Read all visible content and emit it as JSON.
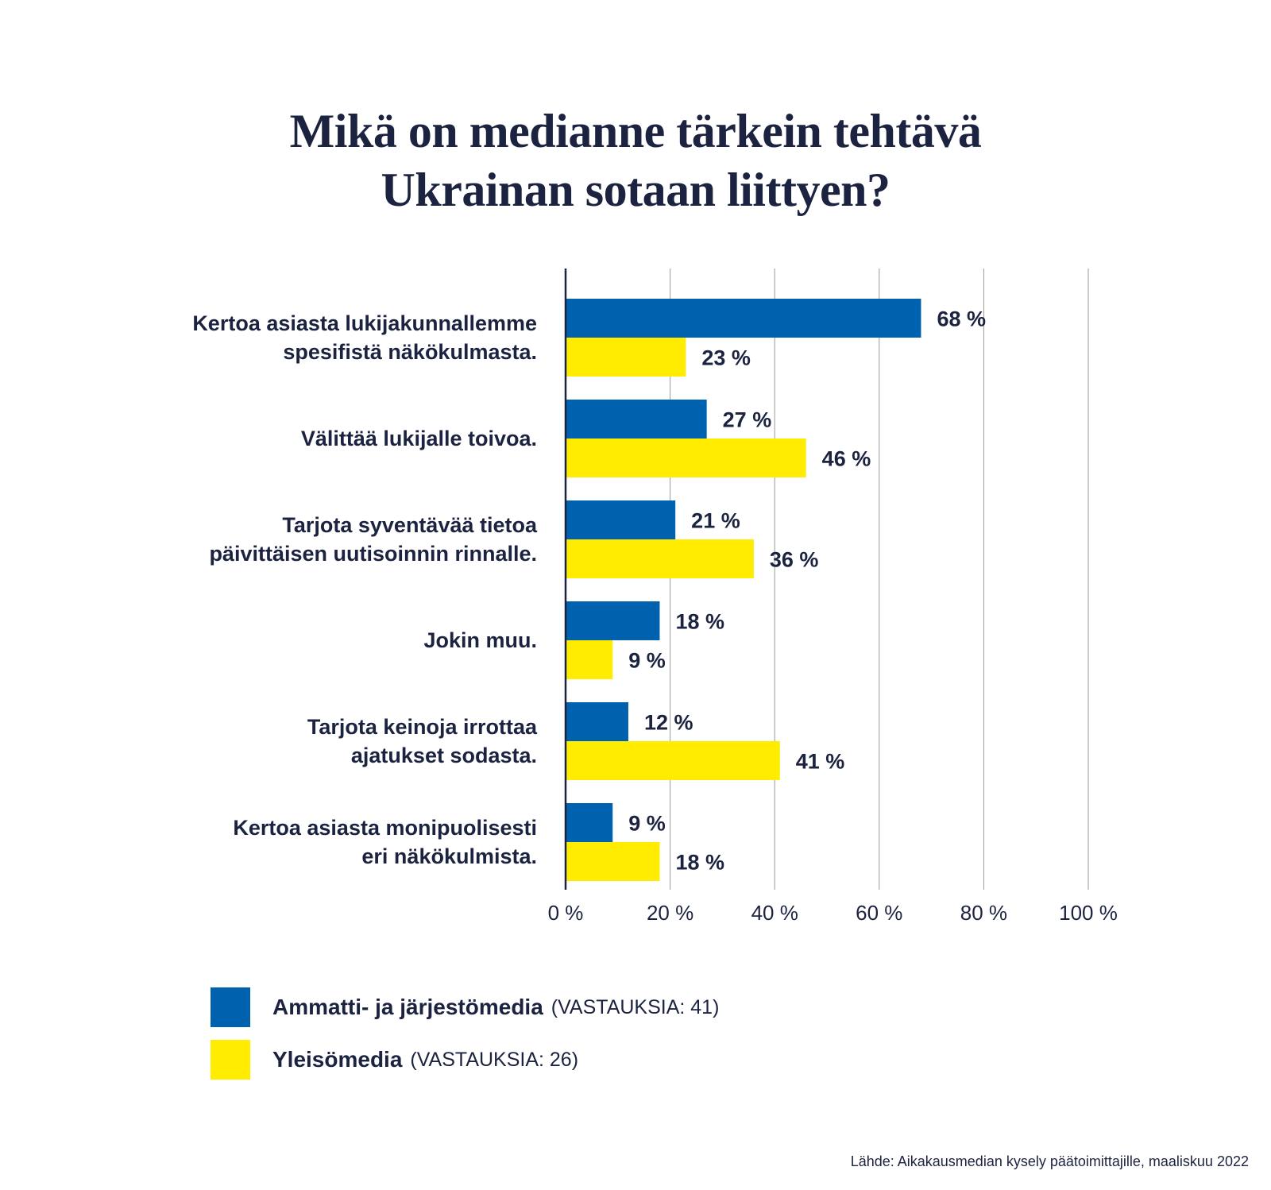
{
  "title_lines": [
    "Mikä on medianne tärkein tehtävä",
    "Ukrainan sotaan liittyen?"
  ],
  "chart_data": {
    "type": "bar",
    "orientation": "horizontal",
    "categories": [
      [
        "Kertoa asiasta lukijakunnallemme",
        "spesifistä näkökulmasta."
      ],
      [
        "Välittää lukijalle toivoa."
      ],
      [
        "Tarjota syventävää tietoa",
        "päivittäisen uutisoinnin rinnalle."
      ],
      [
        "Jokin muu."
      ],
      [
        "Tarjota keinoja irrottaa",
        "ajatukset sodasta."
      ],
      [
        "Kertoa asiasta monipuolisesti",
        "eri näkökulmista."
      ]
    ],
    "series": [
      {
        "name": "Ammatti- ja järjestömedia",
        "note": "(VASTAUKSIA: 41)",
        "color": "#0061ae",
        "values": [
          68,
          27,
          21,
          18,
          12,
          9
        ]
      },
      {
        "name": "Yleisömedia",
        "note": "(VASTAUKSIA: 26)",
        "color": "#ffec00",
        "values": [
          23,
          46,
          36,
          9,
          41,
          18
        ]
      }
    ],
    "value_suffix": " %",
    "xlim": [
      0,
      100
    ],
    "xticks": [
      0,
      20,
      40,
      60,
      80,
      100
    ],
    "xtick_labels": [
      "0 %",
      "20 %",
      "40 %",
      "60 %",
      "80 %",
      "100 %"
    ],
    "grid": true,
    "legend_position": "bottom-left"
  },
  "source": "Lähde: Aikakausmedian kysely päätoimittajille, maaliskuu 2022"
}
